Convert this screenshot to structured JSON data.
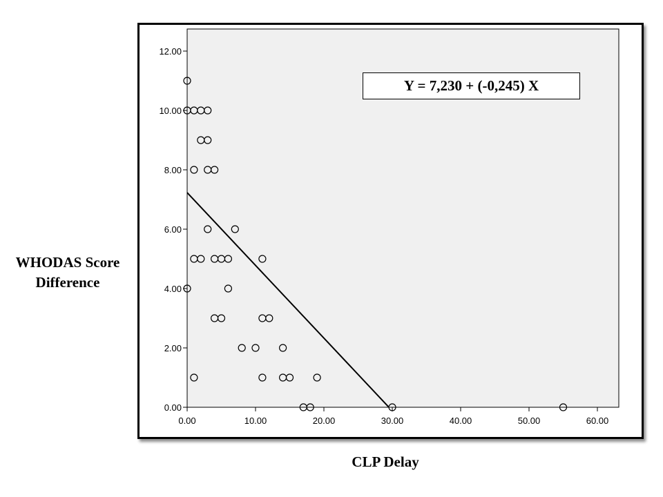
{
  "chart_data": {
    "type": "scatter",
    "title": "",
    "xlabel": "CLP Delay",
    "ylabel_lines": [
      "WHODAS Score",
      "Difference"
    ],
    "xlim": [
      0,
      63
    ],
    "ylim": [
      0,
      12.4
    ],
    "x_ticks": [
      0,
      10,
      20,
      30,
      40,
      50,
      60
    ],
    "y_ticks": [
      0,
      2,
      4,
      6,
      8,
      10,
      12
    ],
    "x_tick_labels": [
      "0.00",
      "10.00",
      "20.00",
      "30.00",
      "40.00",
      "50.00",
      "60.00"
    ],
    "y_tick_labels": [
      "0.00",
      "2.00",
      "4.00",
      "6.00",
      "8.00",
      "10.00",
      "12.00"
    ],
    "grid": false,
    "plot_background": "#f0f0f0",
    "marker_color": "#000000",
    "points": [
      {
        "x": 0,
        "y": 11
      },
      {
        "x": 0,
        "y": 10
      },
      {
        "x": 1,
        "y": 10
      },
      {
        "x": 2,
        "y": 10
      },
      {
        "x": 3,
        "y": 10
      },
      {
        "x": 2,
        "y": 9
      },
      {
        "x": 3,
        "y": 9
      },
      {
        "x": 1,
        "y": 8
      },
      {
        "x": 3,
        "y": 8
      },
      {
        "x": 4,
        "y": 8
      },
      {
        "x": 3,
        "y": 6
      },
      {
        "x": 7,
        "y": 6
      },
      {
        "x": 1,
        "y": 5
      },
      {
        "x": 2,
        "y": 5
      },
      {
        "x": 4,
        "y": 5
      },
      {
        "x": 5,
        "y": 5
      },
      {
        "x": 6,
        "y": 5
      },
      {
        "x": 11,
        "y": 5
      },
      {
        "x": 0,
        "y": 4
      },
      {
        "x": 6,
        "y": 4
      },
      {
        "x": 4,
        "y": 3
      },
      {
        "x": 5,
        "y": 3
      },
      {
        "x": 11,
        "y": 3
      },
      {
        "x": 12,
        "y": 3
      },
      {
        "x": 8,
        "y": 2
      },
      {
        "x": 10,
        "y": 2
      },
      {
        "x": 14,
        "y": 2
      },
      {
        "x": 1,
        "y": 1
      },
      {
        "x": 11,
        "y": 1
      },
      {
        "x": 14,
        "y": 1
      },
      {
        "x": 15,
        "y": 1
      },
      {
        "x": 19,
        "y": 1
      },
      {
        "x": 17,
        "y": 0
      },
      {
        "x": 18,
        "y": 0
      },
      {
        "x": 30,
        "y": 0
      },
      {
        "x": 55,
        "y": 0
      }
    ],
    "fit_line": {
      "intercept": 7.23,
      "slope": -0.245,
      "x_range": [
        0,
        29.5
      ]
    },
    "annotation": "Y = 7,230 + (-0,245) X"
  }
}
